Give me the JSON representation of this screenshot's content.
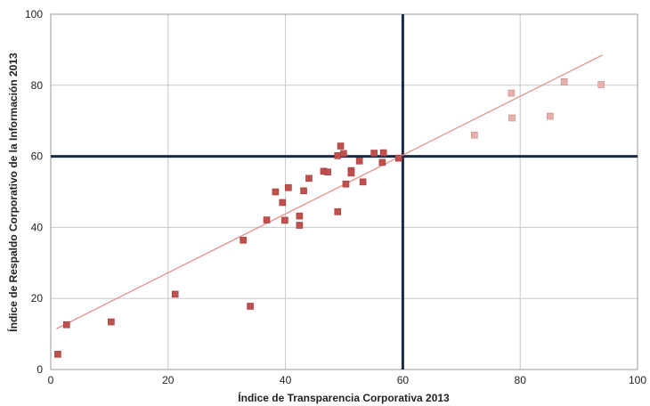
{
  "chart_data": {
    "type": "scatter",
    "title": "",
    "xlabel": "Índice de Transparencia Corporativa 2013",
    "ylabel": "Índice de Respaldo Corporativo de la Información 2013",
    "xlim": [
      0,
      100
    ],
    "ylim": [
      0,
      100
    ],
    "xticks": [
      "0",
      "20",
      "40",
      "60",
      "80",
      "100"
    ],
    "yticks": [
      "0",
      "20",
      "40",
      "60",
      "80",
      "100"
    ],
    "grid": true,
    "legend": "none",
    "reference_lines": {
      "x": 60,
      "y": 60,
      "color": "#1b2a44"
    },
    "trendline": {
      "x": [
        1,
        94
      ],
      "y": [
        11.5,
        88.5
      ],
      "color": "#e8908a"
    },
    "series": [
      {
        "color": "#c0504d",
        "points": [
          {
            "x": 1.2,
            "y": 4.3
          },
          {
            "x": 2.7,
            "y": 12.6
          },
          {
            "x": 10.3,
            "y": 13.4
          },
          {
            "x": 21.2,
            "y": 21.2
          },
          {
            "x": 32.8,
            "y": 36.4
          },
          {
            "x": 34.0,
            "y": 17.8
          },
          {
            "x": 36.8,
            "y": 42.1
          },
          {
            "x": 38.3,
            "y": 50.0
          },
          {
            "x": 39.5,
            "y": 47.0
          },
          {
            "x": 39.9,
            "y": 42.0
          },
          {
            "x": 40.5,
            "y": 51.2
          },
          {
            "x": 42.4,
            "y": 43.2
          },
          {
            "x": 42.4,
            "y": 40.6
          },
          {
            "x": 43.1,
            "y": 50.3
          },
          {
            "x": 44.0,
            "y": 53.8
          },
          {
            "x": 46.5,
            "y": 55.8
          },
          {
            "x": 47.2,
            "y": 55.6
          },
          {
            "x": 48.9,
            "y": 44.4
          },
          {
            "x": 48.9,
            "y": 60.2
          },
          {
            "x": 49.4,
            "y": 62.9
          },
          {
            "x": 49.9,
            "y": 60.8
          },
          {
            "x": 50.3,
            "y": 52.2
          },
          {
            "x": 51.2,
            "y": 56.0
          },
          {
            "x": 51.2,
            "y": 55.3
          },
          {
            "x": 52.6,
            "y": 58.7
          },
          {
            "x": 53.2,
            "y": 52.8
          },
          {
            "x": 55.1,
            "y": 60.9
          },
          {
            "x": 56.5,
            "y": 58.3
          },
          {
            "x": 56.7,
            "y": 61.0
          },
          {
            "x": 59.3,
            "y": 59.5
          }
        ]
      },
      {
        "color": "#e6b0ad",
        "points": [
          {
            "x": 72.2,
            "y": 66.0
          },
          {
            "x": 78.5,
            "y": 77.8
          },
          {
            "x": 78.6,
            "y": 70.8
          },
          {
            "x": 85.1,
            "y": 71.3
          },
          {
            "x": 87.5,
            "y": 81.0
          },
          {
            "x": 93.8,
            "y": 80.2
          }
        ]
      }
    ]
  }
}
